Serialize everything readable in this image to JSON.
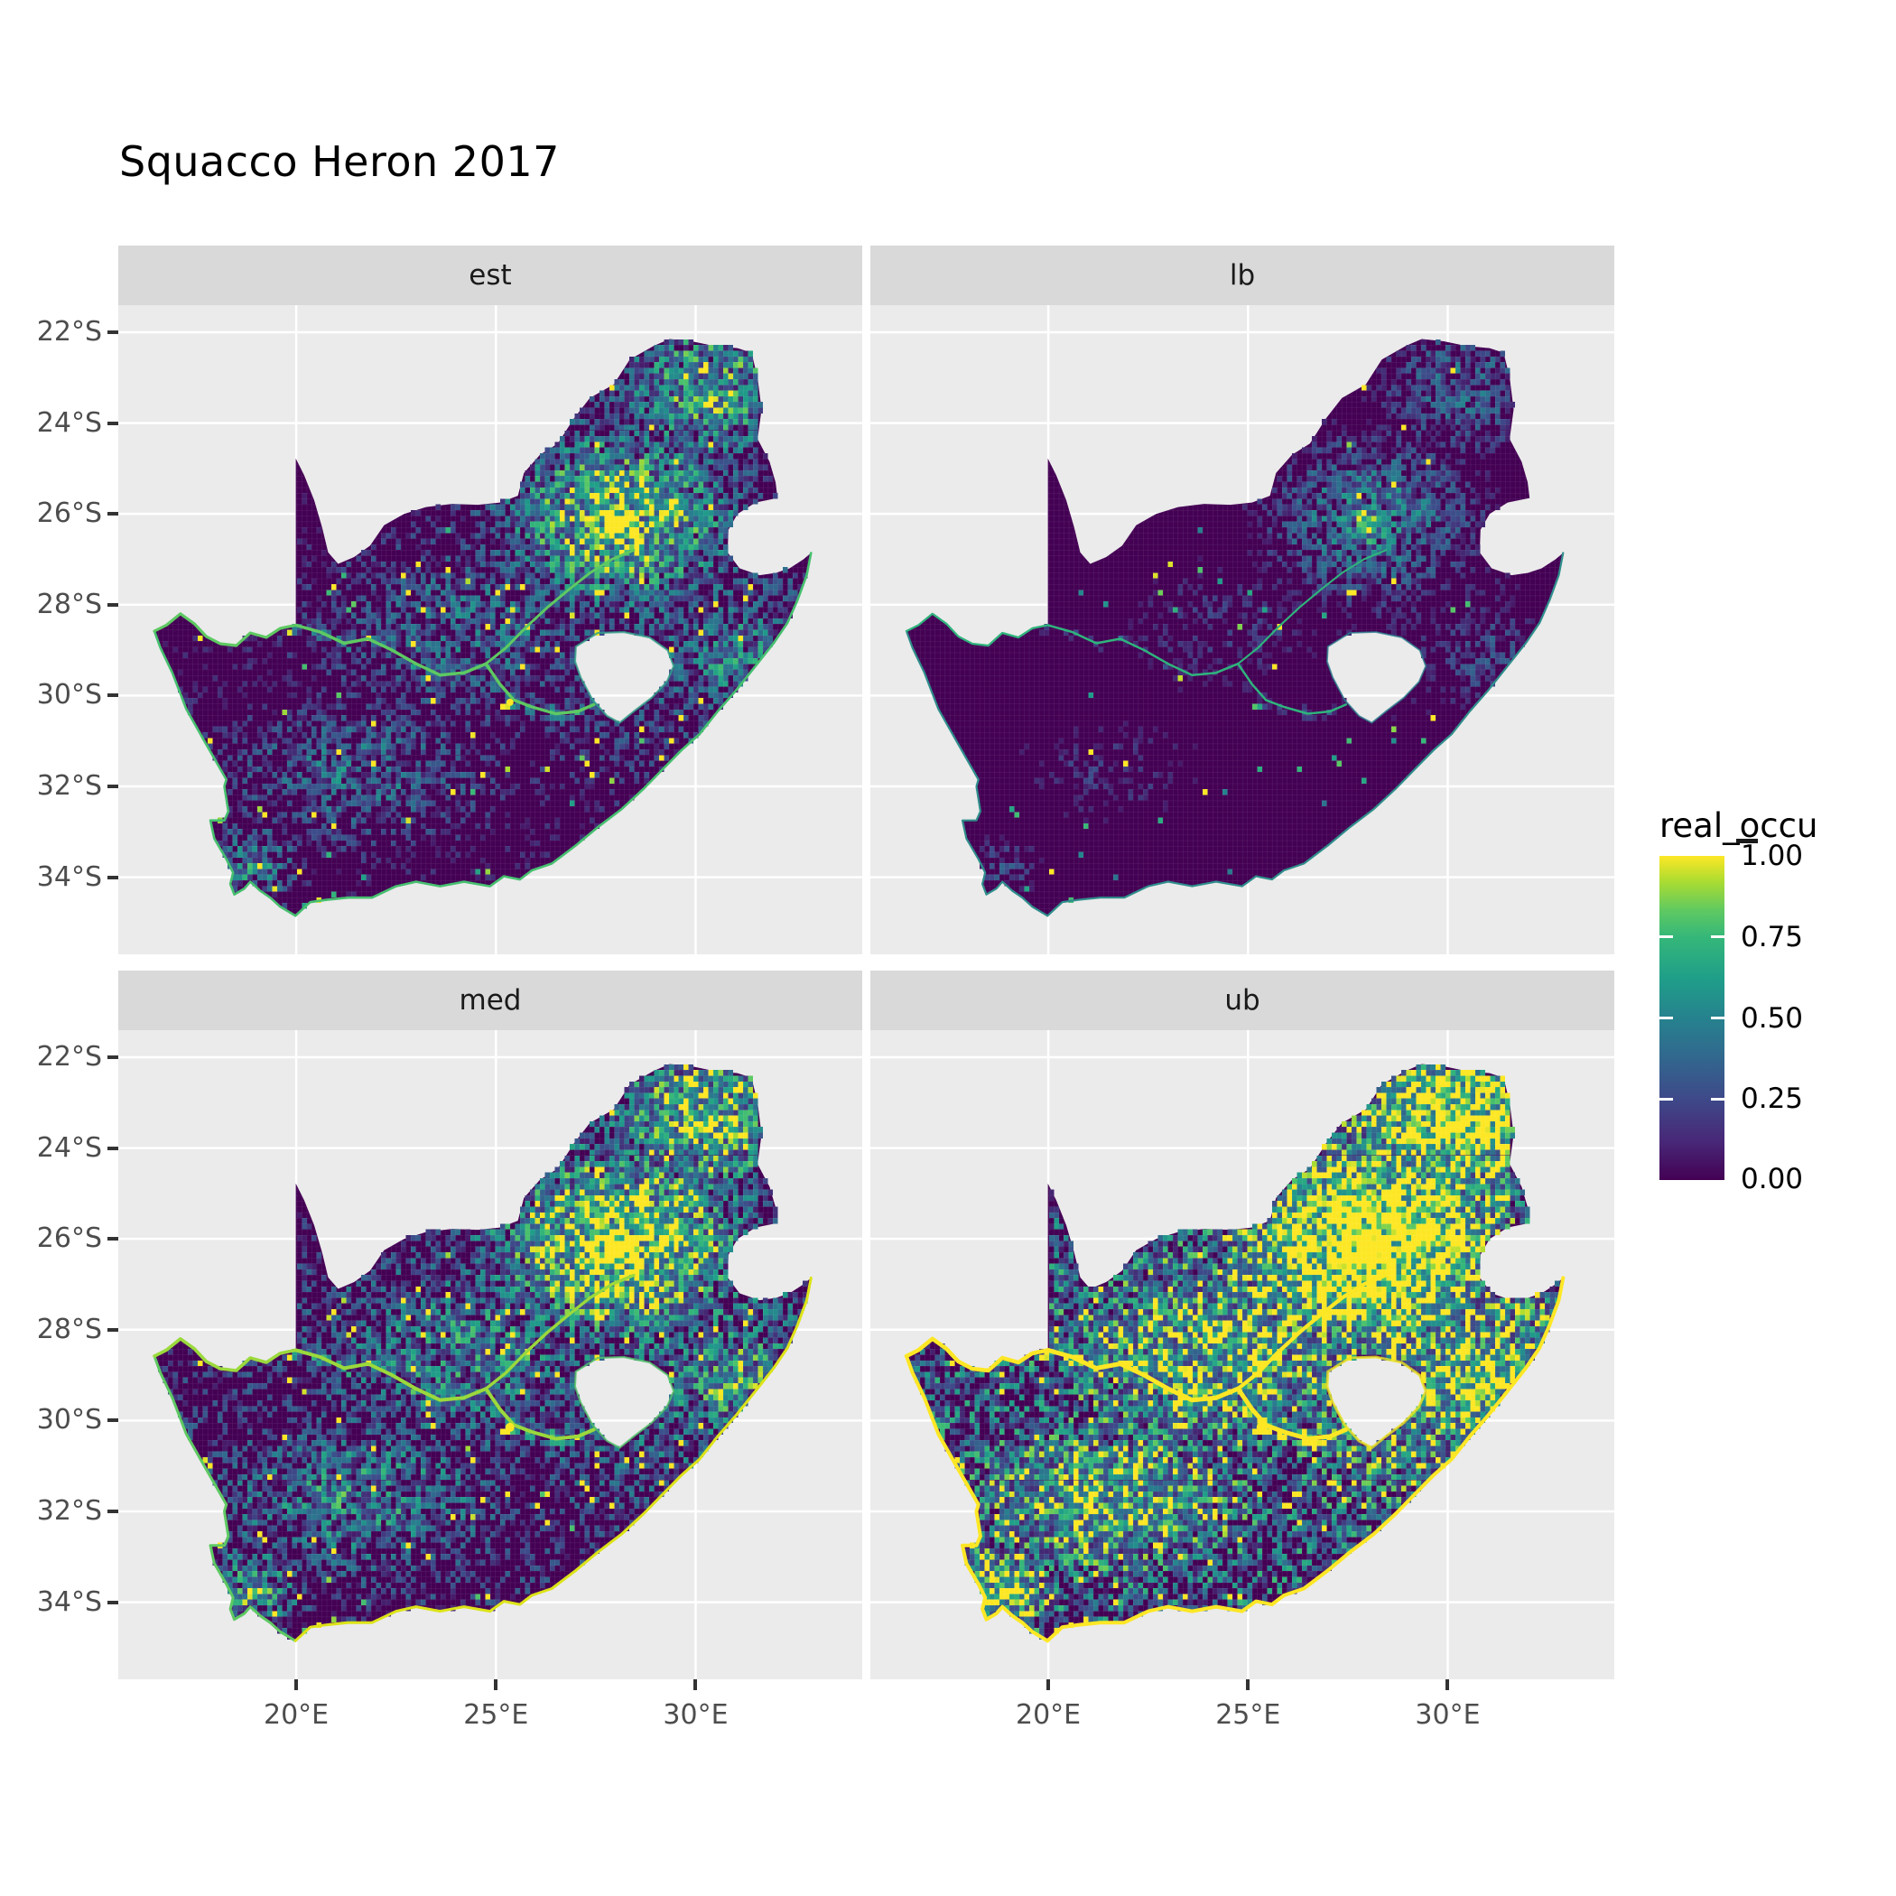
{
  "title": "Squacco Heron 2017",
  "axes": {
    "y_ticks": [
      "22°S",
      "24°S",
      "26°S",
      "28°S",
      "30°S",
      "32°S",
      "34°S"
    ],
    "x_ticks": [
      "20°E",
      "25°E",
      "30°E"
    ]
  },
  "legend": {
    "title": "real_occu",
    "labels": [
      "1.00",
      "0.75",
      "0.50",
      "0.25",
      "0.00"
    ],
    "values": [
      1.0,
      0.75,
      0.5,
      0.25,
      0.0
    ]
  },
  "chart_data": {
    "type": "heatmap",
    "subtype": "faceted-raster-map",
    "title": "Squacco Heron 2017",
    "region": "South Africa (Lesotho and Eswatini shown as holes)",
    "value_name": "real_occu",
    "value_range": [
      0,
      1
    ],
    "palette": "viridis",
    "palette_stops": [
      "#440154",
      "#482878",
      "#3e4989",
      "#31688e",
      "#26828e",
      "#1f9e89",
      "#35b779",
      "#5ec962",
      "#aadc32",
      "#fde725"
    ],
    "x_axis": {
      "label": "",
      "tick_values_deg_E": [
        20,
        25,
        30
      ],
      "range_deg_E": [
        15.545,
        34.175
      ]
    },
    "y_axis": {
      "label": "",
      "tick_values_deg_S": [
        22,
        24,
        26,
        28,
        30,
        32,
        34
      ],
      "range_deg_S": [
        21.404,
        35.699
      ]
    },
    "grid": "white major gridlines on grey panel",
    "legend_position": "right",
    "facets": [
      {
        "label": "est",
        "gain": 1.0,
        "bg": 0.18,
        "thr": 0.985,
        "floor": 0.0,
        "coast_east": "#46c06f",
        "coast_west": "#46c06f",
        "coast_w": 2.6,
        "river": "#5ec962",
        "river_w": 3.5,
        "ring": "#2fa38a",
        "ring_w": 2.2,
        "dam_r": 4
      },
      {
        "label": "lb",
        "gain": 0.6,
        "bg": 0.1,
        "thr": 0.99,
        "floor": -0.02,
        "coast_east": "#2f8e8c",
        "coast_west": "#2f8e8c",
        "coast_w": 2.2,
        "river": "#2fb47c",
        "river_w": 2.5,
        "ring": "#2a7f8e",
        "ring_w": 1.8,
        "dam_r": 0
      },
      {
        "label": "med",
        "gain": 1.18,
        "bg": 0.24,
        "thr": 0.982,
        "floor": 0.02,
        "coast_east": "#dde318",
        "coast_west": "#5ec962",
        "coast_w": 3.0,
        "river": "#9bd93c",
        "river_w": 4.0,
        "ring": "#52c569",
        "ring_w": 2.2,
        "dam_r": 5
      },
      {
        "label": "ub",
        "gain": 1.6,
        "bg": 0.34,
        "thr": 0.975,
        "floor": 0.08,
        "coast_east": "#fde725",
        "coast_west": "#fde725",
        "coast_w": 4.0,
        "river": "#fde725",
        "river_w": 5.0,
        "ring": "#ece51f",
        "ring_w": 3.0,
        "dam_r": 6
      }
    ],
    "colors": {
      "panel_bg": "#ebebeb",
      "strip_bg": "#d9d9d9",
      "gridline": "#ffffff",
      "land_base": "#440154",
      "axis_text": "#4d4d4d",
      "text": "#000000"
    },
    "hotspots_note": "High real_occu (green/yellow) concentrated in the north-east (Gauteng/Mpumalanga/Limpopo), along the Orange and Vaal rivers and the east coast; lb darkest, ub brightest with yellow coastline."
  }
}
